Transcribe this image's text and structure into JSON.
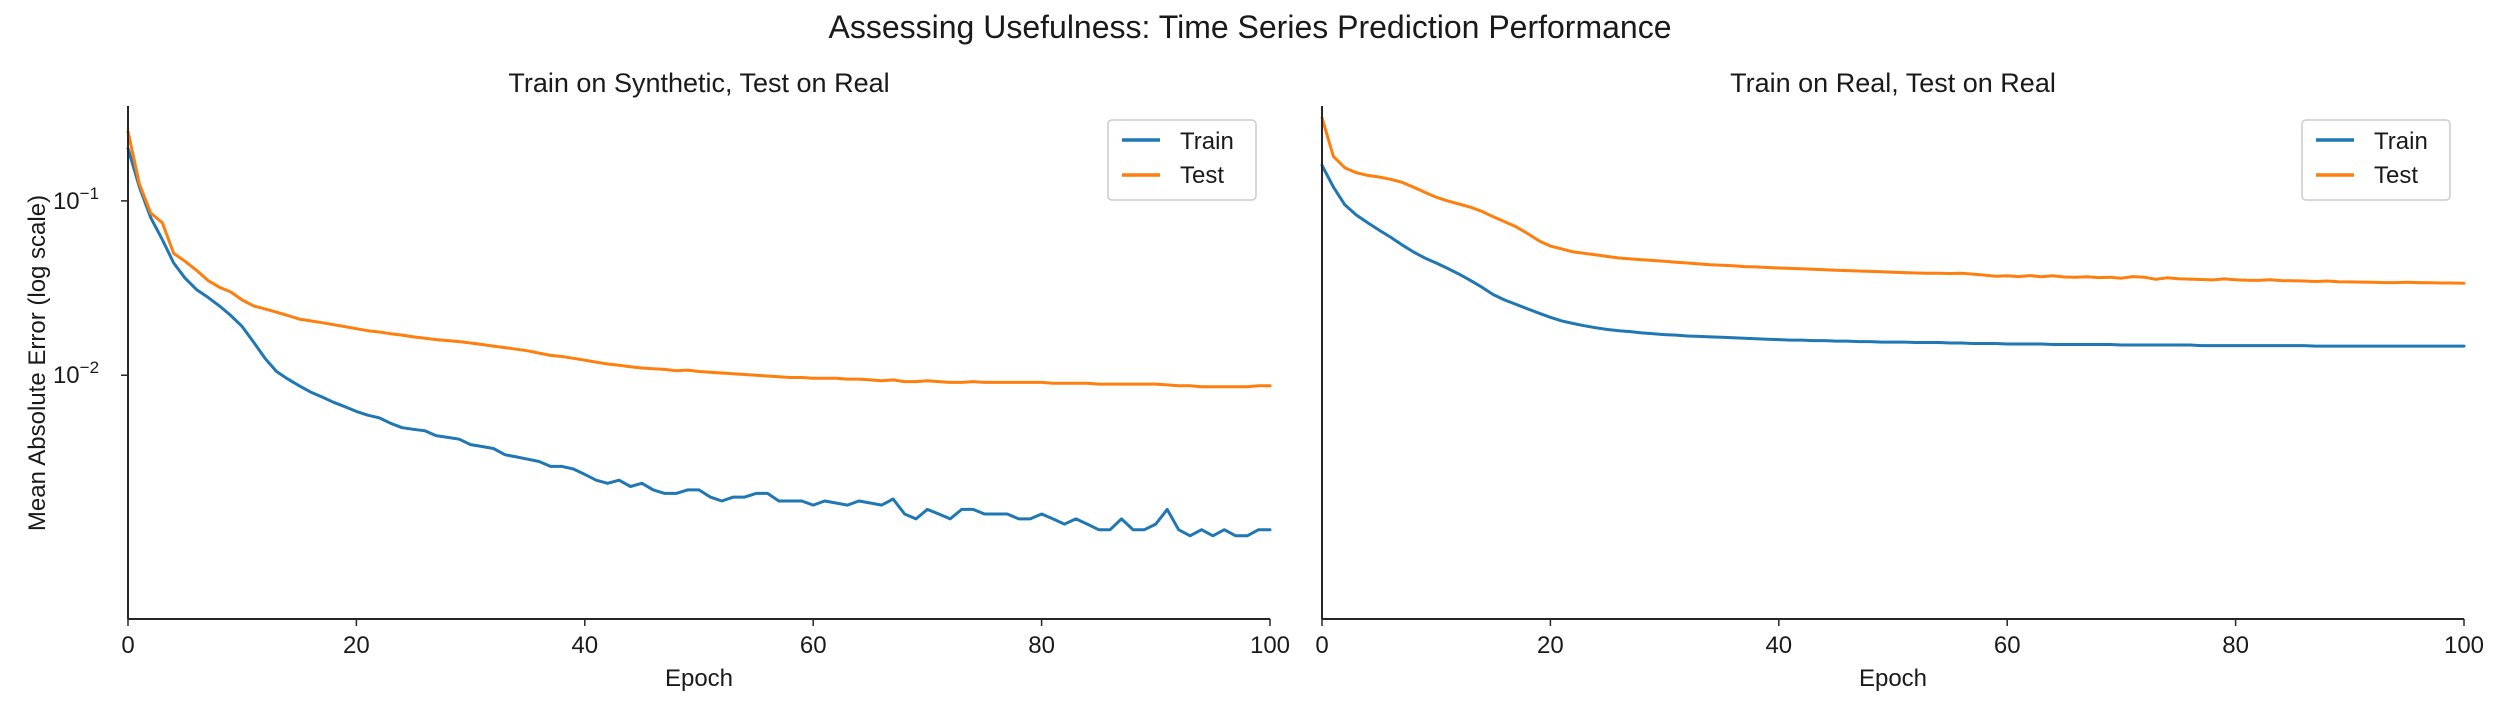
{
  "figure": {
    "title": "Assessing Usefulness: Time Series Prediction Performance"
  },
  "colors": {
    "train": "#1f77b4",
    "test": "#ff7f0e",
    "axis": "#262626"
  },
  "chart_data": [
    {
      "type": "line",
      "title": "Train on Synthetic, Test on Real",
      "xlabel": "Epoch",
      "ylabel": "Mean Absolute Error (log scale)",
      "xlim": [
        0,
        100
      ],
      "ylim": [
        0.0004,
        0.35
      ],
      "yscale": "log",
      "xticks": [
        0,
        20,
        40,
        60,
        80,
        100
      ],
      "yticks": [
        {
          "value": 0.1,
          "base": "10",
          "exp": "−1"
        },
        {
          "value": 0.01,
          "base": "10",
          "exp": "−2"
        }
      ],
      "grid": false,
      "legend_position": "top-right",
      "series": [
        {
          "name": "Train",
          "color": "#1f77b4",
          "x": [
            0,
            1,
            2,
            3,
            4,
            5,
            6,
            7,
            8,
            9,
            10,
            11,
            12,
            13,
            14,
            15,
            16,
            17,
            18,
            19,
            20,
            21,
            22,
            23,
            24,
            25,
            26,
            27,
            28,
            29,
            30,
            31,
            32,
            33,
            34,
            35,
            36,
            37,
            38,
            39,
            40,
            41,
            42,
            43,
            44,
            45,
            46,
            47,
            48,
            49,
            50,
            51,
            52,
            53,
            54,
            55,
            56,
            57,
            58,
            59,
            60,
            61,
            62,
            63,
            64,
            65,
            66,
            67,
            68,
            69,
            70,
            71,
            72,
            73,
            74,
            75,
            76,
            77,
            78,
            79,
            80,
            81,
            82,
            83,
            84,
            85,
            86,
            87,
            88,
            89,
            90,
            91,
            92,
            93,
            94,
            95,
            96,
            97,
            98,
            99,
            100
          ],
          "y": [
            0.2,
            0.12,
            0.08,
            0.06,
            0.044,
            0.036,
            0.031,
            0.028,
            0.025,
            0.022,
            0.019,
            0.0155,
            0.0125,
            0.0105,
            0.0095,
            0.0087,
            0.008,
            0.0075,
            0.007,
            0.0066,
            0.0062,
            0.0059,
            0.0057,
            0.0053,
            0.005,
            0.0049,
            0.0048,
            0.0045,
            0.0044,
            0.0043,
            0.004,
            0.0039,
            0.0038,
            0.0035,
            0.0034,
            0.0033,
            0.0032,
            0.003,
            0.003,
            0.0029,
            0.0027,
            0.0025,
            0.0024,
            0.0025,
            0.0023,
            0.0024,
            0.0022,
            0.0021,
            0.0021,
            0.0022,
            0.0022,
            0.002,
            0.0019,
            0.002,
            0.002,
            0.0021,
            0.0021,
            0.0019,
            0.0019,
            0.0019,
            0.0018,
            0.0019,
            0.00185,
            0.0018,
            0.0019,
            0.00185,
            0.0018,
            0.00195,
            0.0016,
            0.0015,
            0.0017,
            0.0016,
            0.0015,
            0.0017,
            0.0017,
            0.0016,
            0.0016,
            0.0016,
            0.0015,
            0.0015,
            0.0016,
            0.0015,
            0.0014,
            0.0015,
            0.0014,
            0.0013,
            0.0013,
            0.0015,
            0.0013,
            0.0013,
            0.0014,
            0.0017,
            0.0013,
            0.0012,
            0.0013,
            0.0012,
            0.0013,
            0.0012,
            0.0012,
            0.0013,
            0.0013
          ]
        },
        {
          "name": "Test",
          "color": "#ff7f0e",
          "x": [
            0,
            1,
            2,
            3,
            4,
            5,
            6,
            7,
            8,
            9,
            10,
            11,
            12,
            13,
            14,
            15,
            16,
            17,
            18,
            19,
            20,
            21,
            22,
            23,
            24,
            25,
            26,
            27,
            28,
            29,
            30,
            31,
            32,
            33,
            34,
            35,
            36,
            37,
            38,
            39,
            40,
            41,
            42,
            43,
            44,
            45,
            46,
            47,
            48,
            49,
            50,
            51,
            52,
            53,
            54,
            55,
            56,
            57,
            58,
            59,
            60,
            61,
            62,
            63,
            64,
            65,
            66,
            67,
            68,
            69,
            70,
            71,
            72,
            73,
            74,
            75,
            76,
            77,
            78,
            79,
            80,
            81,
            82,
            83,
            84,
            85,
            86,
            87,
            88,
            89,
            90,
            91,
            92,
            93,
            94,
            95,
            96,
            97,
            98,
            99,
            100
          ],
          "y": [
            0.25,
            0.125,
            0.085,
            0.075,
            0.05,
            0.045,
            0.04,
            0.035,
            0.032,
            0.03,
            0.027,
            0.025,
            0.024,
            0.023,
            0.022,
            0.021,
            0.0205,
            0.02,
            0.0195,
            0.019,
            0.0185,
            0.018,
            0.0177,
            0.0173,
            0.017,
            0.0166,
            0.0163,
            0.016,
            0.0158,
            0.0156,
            0.0153,
            0.015,
            0.0147,
            0.0144,
            0.0141,
            0.0138,
            0.0134,
            0.013,
            0.0128,
            0.0125,
            0.0122,
            0.0119,
            0.0116,
            0.0114,
            0.0112,
            0.011,
            0.0109,
            0.0108,
            0.0106,
            0.0107,
            0.0105,
            0.0104,
            0.0103,
            0.0102,
            0.0101,
            0.01,
            0.0099,
            0.0098,
            0.0097,
            0.0097,
            0.0096,
            0.0096,
            0.0096,
            0.0095,
            0.0095,
            0.0094,
            0.0093,
            0.0094,
            0.0092,
            0.0092,
            0.0093,
            0.0092,
            0.0091,
            0.0091,
            0.0092,
            0.0091,
            0.0091,
            0.0091,
            0.0091,
            0.0091,
            0.0091,
            0.009,
            0.009,
            0.009,
            0.009,
            0.0089,
            0.0089,
            0.0089,
            0.0089,
            0.0089,
            0.0089,
            0.0088,
            0.0087,
            0.0087,
            0.0086,
            0.0086,
            0.0086,
            0.0086,
            0.0086,
            0.0087,
            0.0087
          ]
        }
      ]
    },
    {
      "type": "line",
      "title": "Train on Real, Test on Real",
      "xlabel": "Epoch",
      "ylabel": "",
      "xlim": [
        0,
        100
      ],
      "ylim": [
        0.0004,
        0.35
      ],
      "yscale": "log",
      "xticks": [
        0,
        20,
        40,
        60,
        80,
        100
      ],
      "yticks": [],
      "grid": false,
      "legend_position": "top-right",
      "series": [
        {
          "name": "Train",
          "color": "#1f77b4",
          "x": [
            0,
            1,
            2,
            3,
            4,
            5,
            6,
            7,
            8,
            9,
            10,
            11,
            12,
            13,
            14,
            15,
            16,
            17,
            18,
            19,
            20,
            21,
            22,
            23,
            24,
            25,
            26,
            27,
            28,
            29,
            30,
            31,
            32,
            33,
            34,
            35,
            36,
            37,
            38,
            39,
            40,
            41,
            42,
            43,
            44,
            45,
            46,
            47,
            48,
            49,
            50,
            51,
            52,
            53,
            54,
            55,
            56,
            57,
            58,
            59,
            60,
            61,
            62,
            63,
            64,
            65,
            66,
            67,
            68,
            69,
            70,
            71,
            72,
            73,
            74,
            75,
            76,
            77,
            78,
            79,
            80,
            81,
            82,
            83,
            84,
            85,
            86,
            87,
            88,
            89,
            90,
            91,
            92,
            93,
            94,
            95,
            96,
            97,
            98,
            99,
            100
          ],
          "y": [
            0.16,
            0.12,
            0.095,
            0.083,
            0.075,
            0.068,
            0.062,
            0.056,
            0.051,
            0.047,
            0.044,
            0.041,
            0.038,
            0.035,
            0.032,
            0.029,
            0.027,
            0.0255,
            0.024,
            0.0227,
            0.0215,
            0.0205,
            0.0198,
            0.0192,
            0.0187,
            0.0183,
            0.018,
            0.0178,
            0.0175,
            0.0173,
            0.0171,
            0.017,
            0.0168,
            0.0167,
            0.0166,
            0.0165,
            0.0164,
            0.0163,
            0.0162,
            0.0161,
            0.016,
            0.0159,
            0.0159,
            0.0158,
            0.0158,
            0.0157,
            0.0157,
            0.0156,
            0.0156,
            0.0155,
            0.0155,
            0.0155,
            0.0154,
            0.0154,
            0.0154,
            0.0153,
            0.0153,
            0.0152,
            0.0152,
            0.0152,
            0.0151,
            0.0151,
            0.0151,
            0.0151,
            0.015,
            0.015,
            0.015,
            0.015,
            0.015,
            0.015,
            0.0149,
            0.0149,
            0.0149,
            0.0149,
            0.0149,
            0.0149,
            0.0149,
            0.0148,
            0.0148,
            0.0148,
            0.0148,
            0.0148,
            0.0148,
            0.0148,
            0.0148,
            0.0148,
            0.0148,
            0.0147,
            0.0147,
            0.0147,
            0.0147,
            0.0147,
            0.0147,
            0.0147,
            0.0147,
            0.0147,
            0.0147,
            0.0147,
            0.0147,
            0.0147,
            0.0147
          ]
        },
        {
          "name": "Test",
          "color": "#ff7f0e",
          "x": [
            0,
            1,
            2,
            3,
            4,
            5,
            6,
            7,
            8,
            9,
            10,
            11,
            12,
            13,
            14,
            15,
            16,
            17,
            18,
            19,
            20,
            21,
            22,
            23,
            24,
            25,
            26,
            27,
            28,
            29,
            30,
            31,
            32,
            33,
            34,
            35,
            36,
            37,
            38,
            39,
            40,
            41,
            42,
            43,
            44,
            45,
            46,
            47,
            48,
            49,
            50,
            51,
            52,
            53,
            54,
            55,
            56,
            57,
            58,
            59,
            60,
            61,
            62,
            63,
            64,
            65,
            66,
            67,
            68,
            69,
            70,
            71,
            72,
            73,
            74,
            75,
            76,
            77,
            78,
            79,
            80,
            81,
            82,
            83,
            84,
            85,
            86,
            87,
            88,
            89,
            90,
            91,
            92,
            93,
            94,
            95,
            96,
            97,
            98,
            99,
            100
          ],
          "y": [
            0.3,
            0.18,
            0.155,
            0.145,
            0.14,
            0.137,
            0.133,
            0.128,
            0.12,
            0.112,
            0.105,
            0.1,
            0.096,
            0.092,
            0.087,
            0.081,
            0.076,
            0.071,
            0.065,
            0.059,
            0.055,
            0.053,
            0.051,
            0.05,
            0.049,
            0.048,
            0.047,
            0.0465,
            0.046,
            0.0455,
            0.045,
            0.0445,
            0.044,
            0.0435,
            0.043,
            0.0427,
            0.0424,
            0.042,
            0.0418,
            0.0415,
            0.0412,
            0.041,
            0.0408,
            0.0405,
            0.0403,
            0.04,
            0.0398,
            0.0396,
            0.0394,
            0.0392,
            0.039,
            0.0388,
            0.0386,
            0.0385,
            0.0384,
            0.0383,
            0.0385,
            0.038,
            0.0375,
            0.037,
            0.0372,
            0.0368,
            0.0373,
            0.0367,
            0.0372,
            0.0366,
            0.0365,
            0.0367,
            0.0363,
            0.0365,
            0.036,
            0.0368,
            0.0365,
            0.0355,
            0.0362,
            0.0358,
            0.0356,
            0.0354,
            0.0352,
            0.0357,
            0.0353,
            0.0351,
            0.035,
            0.0353,
            0.0349,
            0.0348,
            0.0347,
            0.0345,
            0.0347,
            0.0344,
            0.0343,
            0.0342,
            0.0341,
            0.034,
            0.034,
            0.0341,
            0.034,
            0.0339,
            0.0338,
            0.0338,
            0.0337
          ]
        }
      ]
    }
  ]
}
